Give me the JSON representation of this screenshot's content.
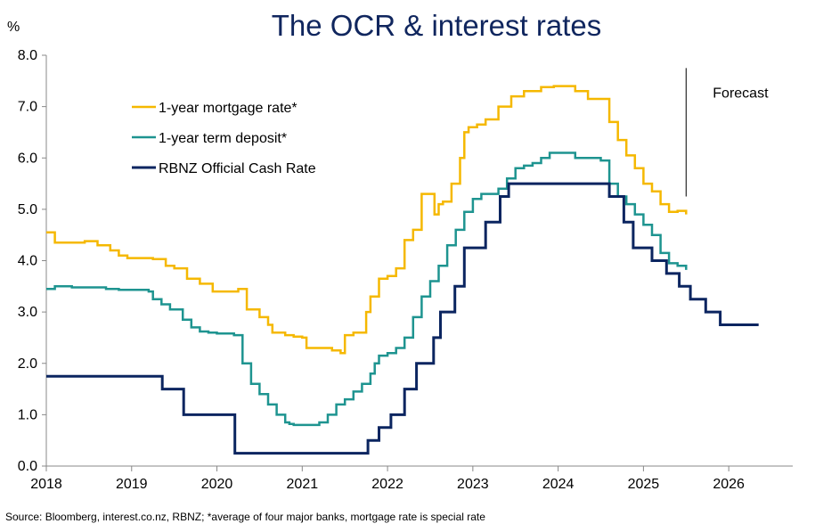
{
  "chart_data": {
    "type": "line",
    "title": "The OCR & interest rates",
    "ylabel": "%",
    "ylim": [
      0,
      8
    ],
    "xlim": [
      2018.0,
      2026.75
    ],
    "yticks": [
      "0.0",
      "1.0",
      "2.0",
      "3.0",
      "4.0",
      "5.0",
      "6.0",
      "7.0",
      "8.0"
    ],
    "xticks": [
      "2018",
      "2019",
      "2020",
      "2021",
      "2022",
      "2023",
      "2024",
      "2025",
      "2026"
    ],
    "grid": false,
    "legend_position": "top-left",
    "annotation": {
      "label": "Forecast",
      "x": 2025.5,
      "y_range": [
        5.25,
        7.75
      ]
    },
    "source": "Source: Bloomberg, interest.co.nz, RBNZ; *average of four major banks, mortgage rate is special rate",
    "series": [
      {
        "name": "1-year mortgage rate*",
        "color": "#f5b800",
        "x": [
          2018.0,
          2018.1,
          2018.3,
          2018.45,
          2018.6,
          2018.75,
          2018.85,
          2018.95,
          2019.1,
          2019.25,
          2019.4,
          2019.5,
          2019.65,
          2019.8,
          2019.95,
          2020.1,
          2020.25,
          2020.35,
          2020.5,
          2020.6,
          2020.65,
          2020.8,
          2020.9,
          2021.0,
          2021.05,
          2021.35,
          2021.45,
          2021.5,
          2021.6,
          2021.75,
          2021.8,
          2021.9,
          2022.0,
          2022.1,
          2022.2,
          2022.3,
          2022.4,
          2022.45,
          2022.55,
          2022.6,
          2022.65,
          2022.75,
          2022.85,
          2022.9,
          2022.95,
          2023.05,
          2023.15,
          2023.3,
          2023.45,
          2023.6,
          2023.8,
          2023.95,
          2024.2,
          2024.35,
          2024.5,
          2024.6,
          2024.7,
          2024.8,
          2024.9,
          2025.0,
          2025.1,
          2025.2,
          2025.3,
          2025.4,
          2025.5
        ],
        "values": [
          4.55,
          4.35,
          4.35,
          4.38,
          4.3,
          4.2,
          4.1,
          4.05,
          4.05,
          4.03,
          3.9,
          3.85,
          3.65,
          3.55,
          3.4,
          3.4,
          3.45,
          3.05,
          2.9,
          2.75,
          2.6,
          2.55,
          2.52,
          2.5,
          2.3,
          2.25,
          2.2,
          2.55,
          2.6,
          3.0,
          3.3,
          3.65,
          3.7,
          3.85,
          4.4,
          4.6,
          5.3,
          5.3,
          4.9,
          5.1,
          5.15,
          5.5,
          6.0,
          6.5,
          6.6,
          6.65,
          6.75,
          7.0,
          7.2,
          7.3,
          7.38,
          7.4,
          7.3,
          7.15,
          7.15,
          6.7,
          6.35,
          6.05,
          5.8,
          5.5,
          5.35,
          5.1,
          4.95,
          4.97,
          4.9
        ]
      },
      {
        "name": "1-year term deposit*",
        "color": "#1e9490",
        "x": [
          2018.0,
          2018.1,
          2018.3,
          2018.5,
          2018.7,
          2018.85,
          2018.95,
          2019.1,
          2019.2,
          2019.25,
          2019.35,
          2019.45,
          2019.6,
          2019.7,
          2019.8,
          2019.9,
          2020.0,
          2020.1,
          2020.2,
          2020.3,
          2020.4,
          2020.5,
          2020.6,
          2020.7,
          2020.8,
          2020.85,
          2020.9,
          2021.0,
          2021.1,
          2021.2,
          2021.3,
          2021.4,
          2021.5,
          2021.6,
          2021.7,
          2021.8,
          2021.85,
          2021.9,
          2022.0,
          2022.1,
          2022.2,
          2022.3,
          2022.4,
          2022.5,
          2022.6,
          2022.7,
          2022.8,
          2022.9,
          2023.0,
          2023.1,
          2023.2,
          2023.3,
          2023.4,
          2023.5,
          2023.6,
          2023.7,
          2023.8,
          2023.9,
          2024.0,
          2024.2,
          2024.35,
          2024.5,
          2024.6,
          2024.7,
          2024.8,
          2024.9,
          2025.0,
          2025.1,
          2025.2,
          2025.3,
          2025.4,
          2025.5
        ],
        "values": [
          3.45,
          3.5,
          3.48,
          3.48,
          3.45,
          3.43,
          3.43,
          3.43,
          3.4,
          3.25,
          3.15,
          3.05,
          2.85,
          2.7,
          2.62,
          2.6,
          2.58,
          2.58,
          2.55,
          2.0,
          1.6,
          1.4,
          1.2,
          1.0,
          0.85,
          0.82,
          0.8,
          0.8,
          0.8,
          0.85,
          1.0,
          1.2,
          1.3,
          1.45,
          1.6,
          1.8,
          2.0,
          2.15,
          2.2,
          2.3,
          2.5,
          2.9,
          3.3,
          3.6,
          3.9,
          4.3,
          4.6,
          4.95,
          5.2,
          5.3,
          5.3,
          5.4,
          5.6,
          5.8,
          5.85,
          5.9,
          6.0,
          6.1,
          6.1,
          6.0,
          6.0,
          5.95,
          5.5,
          5.25,
          5.1,
          4.9,
          4.7,
          4.5,
          4.15,
          3.95,
          3.9,
          3.82
        ]
      },
      {
        "name": "RBNZ Official Cash Rate",
        "color": "#0b2560",
        "x": [
          2018.0,
          2019.36,
          2019.61,
          2020.21,
          2021.77,
          2021.9,
          2022.04,
          2022.2,
          2022.34,
          2022.54,
          2022.62,
          2022.79,
          2022.9,
          2023.15,
          2023.32,
          2023.42,
          2024.6,
          2024.77,
          2024.88,
          2025.1,
          2025.27,
          2025.42,
          2025.55,
          2025.73,
          2025.9,
          2026.35
        ],
        "values": [
          1.75,
          1.5,
          1.0,
          0.25,
          0.5,
          0.75,
          1.0,
          1.5,
          2.0,
          2.5,
          3.0,
          3.5,
          4.25,
          4.75,
          5.25,
          5.5,
          5.25,
          4.75,
          4.25,
          4.0,
          3.75,
          3.5,
          3.25,
          3.0,
          2.75,
          2.75
        ]
      }
    ]
  }
}
